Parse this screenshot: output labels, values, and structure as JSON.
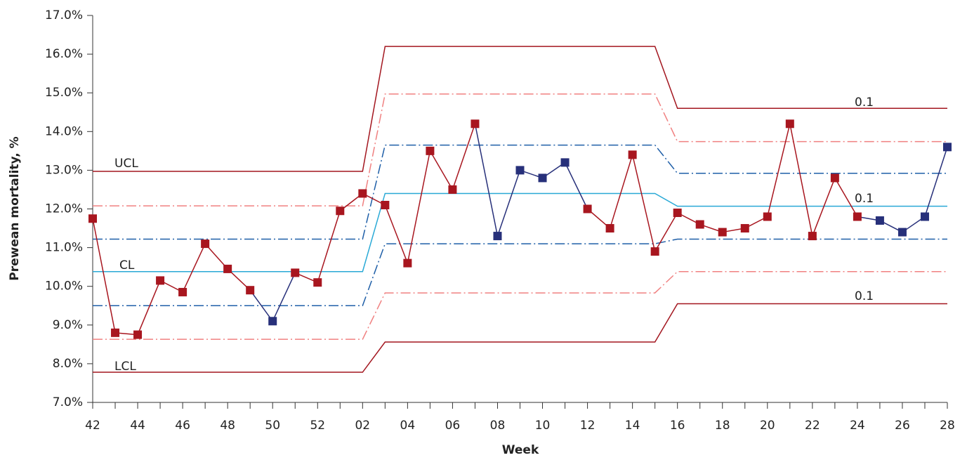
{
  "chart_data": {
    "type": "control",
    "x_label": "Week",
    "y_label": "Prewean mortality, %",
    "categories": [
      "42",
      null,
      "44",
      null,
      "46",
      null,
      "48",
      null,
      "50",
      null,
      "52",
      null,
      "02",
      null,
      "04",
      null,
      "06",
      null,
      "08",
      null,
      "10",
      null,
      "12",
      null,
      "14",
      null,
      "16",
      null,
      "18",
      null,
      "20",
      null,
      "22",
      null,
      "24",
      null,
      "26",
      null,
      "28"
    ],
    "ylim": [
      7,
      17
    ],
    "yticks": [
      {
        "value": 7,
        "label": "7.0%"
      },
      {
        "value": 8,
        "label": "8.0%"
      },
      {
        "value": 9,
        "label": "9.0%"
      },
      {
        "value": 10,
        "label": "10.0%"
      },
      {
        "value": 11,
        "label": "11.0%"
      },
      {
        "value": 12,
        "label": "12.0%"
      },
      {
        "value": 13,
        "label": "13.0%"
      },
      {
        "value": 14,
        "label": "14.0%"
      },
      {
        "value": 15,
        "label": "15.0%"
      },
      {
        "value": 16,
        "label": "16.0%"
      },
      {
        "value": 17,
        "label": "17.0%"
      }
    ],
    "grid": false,
    "annotations": [
      "UCL",
      "CL",
      "LCL",
      "0.1",
      "0.1",
      "0.1"
    ],
    "series": [
      {
        "color": "#a3161f",
        "dash": "solid",
        "values": [
          12.97,
          12.97,
          12.97,
          12.97,
          12.97,
          12.97,
          12.97,
          12.97,
          12.97,
          12.97,
          12.97,
          12.97,
          12.97,
          16.2,
          16.2,
          16.2,
          16.2,
          16.2,
          16.2,
          16.2,
          16.2,
          16.2,
          16.2,
          16.2,
          16.2,
          16.2,
          14.6,
          14.6,
          14.6,
          14.6,
          14.6,
          14.6,
          14.6,
          14.6,
          14.6,
          14.6,
          14.6,
          14.6,
          14.6
        ]
      },
      {
        "color": "#f08080",
        "dash": "dashdot",
        "values": [
          12.08,
          12.08,
          12.08,
          12.08,
          12.08,
          12.08,
          12.08,
          12.08,
          12.08,
          12.08,
          12.08,
          12.08,
          12.08,
          14.97,
          14.97,
          14.97,
          14.97,
          14.97,
          14.97,
          14.97,
          14.97,
          14.97,
          14.97,
          14.97,
          14.97,
          14.97,
          13.74,
          13.74,
          13.74,
          13.74,
          13.74,
          13.74,
          13.74,
          13.74,
          13.74,
          13.74,
          13.74,
          13.74,
          13.74
        ]
      },
      {
        "color": "#1f5fa8",
        "dash": "dashdot",
        "values": [
          11.22,
          11.22,
          11.22,
          11.22,
          11.22,
          11.22,
          11.22,
          11.22,
          11.22,
          11.22,
          11.22,
          11.22,
          11.22,
          13.65,
          13.65,
          13.65,
          13.65,
          13.65,
          13.65,
          13.65,
          13.65,
          13.65,
          13.65,
          13.65,
          13.65,
          13.65,
          12.92,
          12.92,
          12.92,
          12.92,
          12.92,
          12.92,
          12.92,
          12.92,
          12.92,
          12.92,
          12.92,
          12.92,
          12.92
        ]
      },
      {
        "color": "#29a9d6",
        "dash": "solid",
        "values": [
          10.38,
          10.38,
          10.38,
          10.38,
          10.38,
          10.38,
          10.38,
          10.38,
          10.38,
          10.38,
          10.38,
          10.38,
          10.38,
          12.4,
          12.4,
          12.4,
          12.4,
          12.4,
          12.4,
          12.4,
          12.4,
          12.4,
          12.4,
          12.4,
          12.4,
          12.4,
          12.07,
          12.07,
          12.07,
          12.07,
          12.07,
          12.07,
          12.07,
          12.07,
          12.07,
          12.07,
          12.07,
          12.07,
          12.07
        ]
      },
      {
        "color": "#1f5fa8",
        "dash": "dashdot",
        "values": [
          9.5,
          9.5,
          9.5,
          9.5,
          9.5,
          9.5,
          9.5,
          9.5,
          9.5,
          9.5,
          9.5,
          9.5,
          9.5,
          11.1,
          11.1,
          11.1,
          11.1,
          11.1,
          11.1,
          11.1,
          11.1,
          11.1,
          11.1,
          11.1,
          11.1,
          11.1,
          11.22,
          11.22,
          11.22,
          11.22,
          11.22,
          11.22,
          11.22,
          11.22,
          11.22,
          11.22,
          11.22,
          11.22,
          11.22
        ]
      },
      {
        "color": "#f08080",
        "dash": "dashdot",
        "values": [
          8.63,
          8.63,
          8.63,
          8.63,
          8.63,
          8.63,
          8.63,
          8.63,
          8.63,
          8.63,
          8.63,
          8.63,
          8.63,
          9.83,
          9.83,
          9.83,
          9.83,
          9.83,
          9.83,
          9.83,
          9.83,
          9.83,
          9.83,
          9.83,
          9.83,
          9.83,
          10.38,
          10.38,
          10.38,
          10.38,
          10.38,
          10.38,
          10.38,
          10.38,
          10.38,
          10.38,
          10.38,
          10.38,
          10.38
        ]
      },
      {
        "color": "#a3161f",
        "dash": "solid",
        "values": [
          7.78,
          7.78,
          7.78,
          7.78,
          7.78,
          7.78,
          7.78,
          7.78,
          7.78,
          7.78,
          7.78,
          7.78,
          7.78,
          8.56,
          8.56,
          8.56,
          8.56,
          8.56,
          8.56,
          8.56,
          8.56,
          8.56,
          8.56,
          8.56,
          8.56,
          8.56,
          9.55,
          9.55,
          9.55,
          9.55,
          9.55,
          9.55,
          9.55,
          9.55,
          9.55,
          9.55,
          9.55,
          9.55,
          9.55
        ]
      },
      {
        "color": "#a8161f",
        "dash": "solid",
        "markers": true,
        "values": [
          11.75,
          8.8,
          8.75,
          10.15,
          9.85,
          11.1,
          10.45,
          9.9,
          9.1,
          10.35,
          10.1,
          11.95,
          12.4,
          12.1,
          10.6,
          13.5,
          12.5,
          14.2,
          11.3,
          13.0,
          12.8,
          13.2,
          12.0,
          11.5,
          13.4,
          10.9,
          11.9,
          11.6,
          11.4,
          11.5,
          11.8,
          14.2,
          11.3,
          12.8,
          11.8,
          11.7,
          11.4,
          11.8,
          13.6
        ],
        "marker_colors": [
          "#a8161f",
          "#a8161f",
          "#a8161f",
          "#a8161f",
          "#a8161f",
          "#a8161f",
          "#a8161f",
          "#a8161f",
          "#27307a",
          "#a8161f",
          "#a8161f",
          "#a8161f",
          "#a8161f",
          "#a8161f",
          "#a8161f",
          "#a8161f",
          "#a8161f",
          "#a8161f",
          "#27307a",
          "#27307a",
          "#27307a",
          "#27307a",
          "#a8161f",
          "#a8161f",
          "#a8161f",
          "#a8161f",
          "#a8161f",
          "#a8161f",
          "#a8161f",
          "#a8161f",
          "#a8161f",
          "#a8161f",
          "#a8161f",
          "#a8161f",
          "#a8161f",
          "#27307a",
          "#27307a",
          "#27307a",
          "#27307a"
        ]
      }
    ]
  }
}
